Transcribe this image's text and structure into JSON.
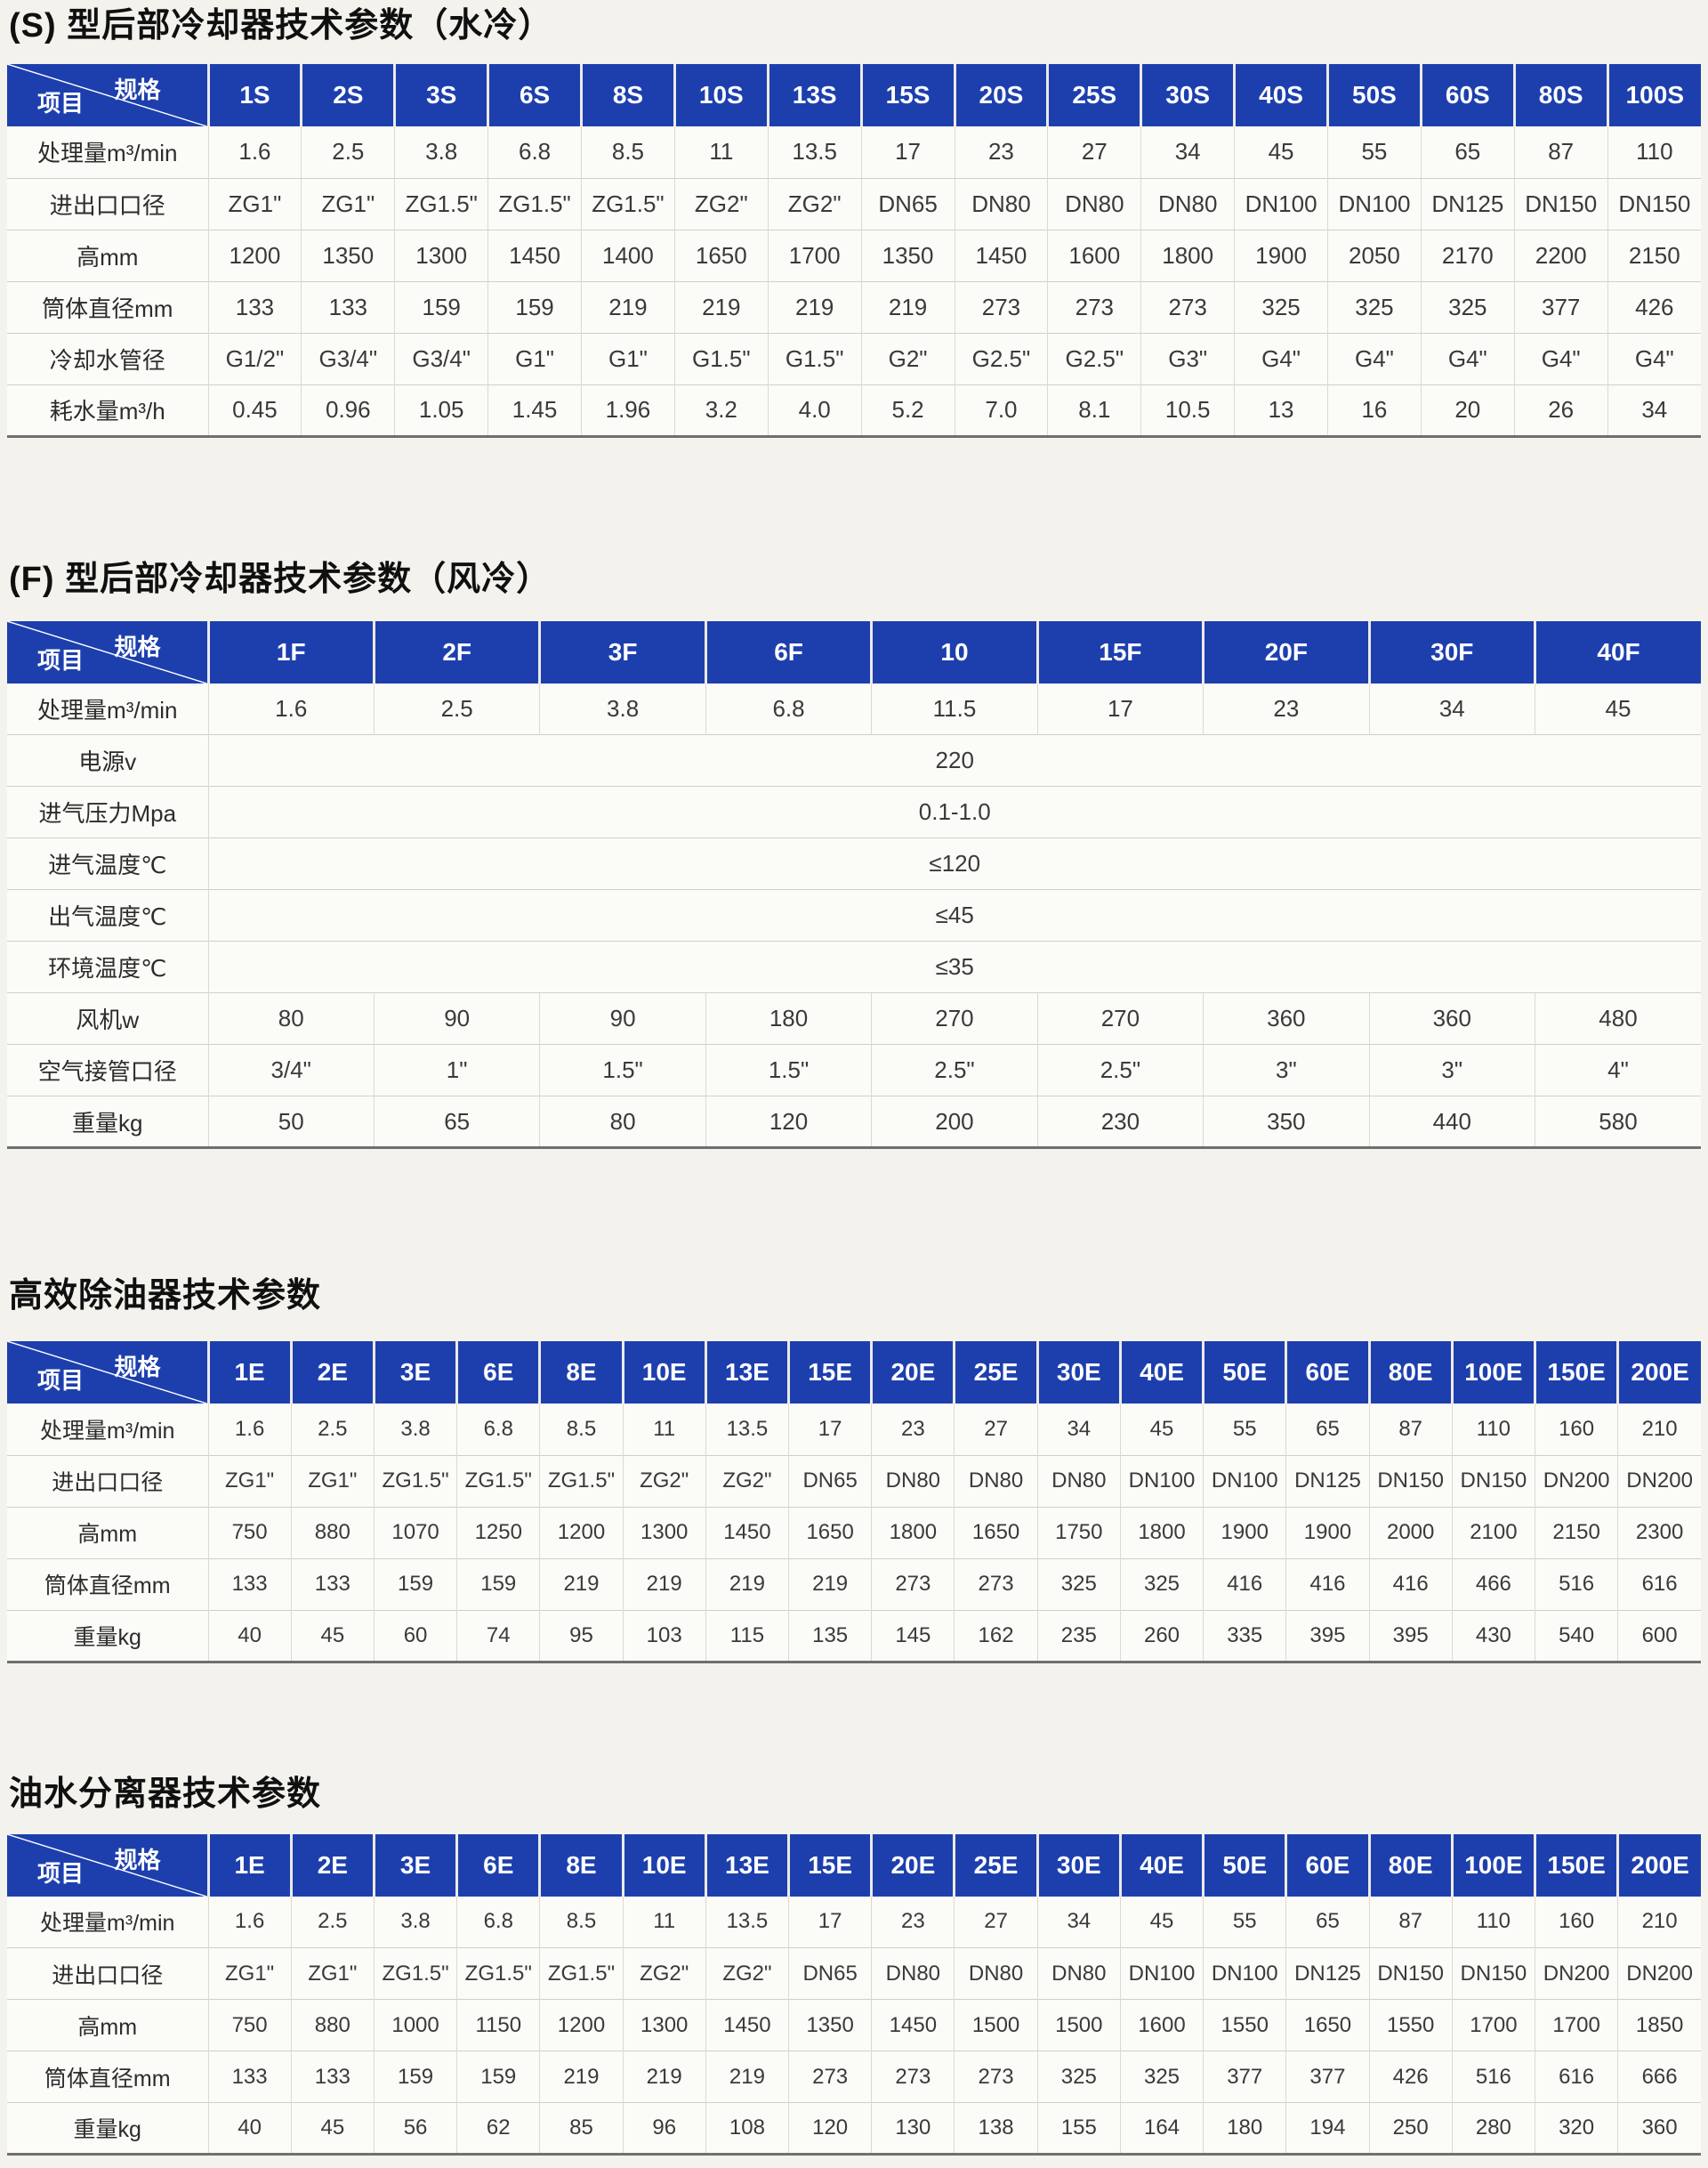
{
  "colors": {
    "header_blue": "#1d3fae",
    "page_bg": "#f3f2ed",
    "table_bg": "#fbfbf8"
  },
  "tables": [
    {
      "title": "(S) 型后部冷却器技术参数（水冷）",
      "corner": {
        "spec_label": "规格",
        "item_label": "项目"
      },
      "columns": [
        "1S",
        "2S",
        "3S",
        "6S",
        "8S",
        "10S",
        "13S",
        "15S",
        "20S",
        "25S",
        "30S",
        "40S",
        "50S",
        "60S",
        "80S",
        "100S"
      ],
      "rows": [
        {
          "label": "处理量m³/min",
          "values": [
            "1.6",
            "2.5",
            "3.8",
            "6.8",
            "8.5",
            "11",
            "13.5",
            "17",
            "23",
            "27",
            "34",
            "45",
            "55",
            "65",
            "87",
            "110"
          ]
        },
        {
          "label": "进出口口径",
          "values": [
            "ZG1\"",
            "ZG1\"",
            "ZG1.5\"",
            "ZG1.5\"",
            "ZG1.5\"",
            "ZG2\"",
            "ZG2\"",
            "DN65",
            "DN80",
            "DN80",
            "DN80",
            "DN100",
            "DN100",
            "DN125",
            "DN150",
            "DN150"
          ]
        },
        {
          "label": "高mm",
          "values": [
            "1200",
            "1350",
            "1300",
            "1450",
            "1400",
            "1650",
            "1700",
            "1350",
            "1450",
            "1600",
            "1800",
            "1900",
            "2050",
            "2170",
            "2200",
            "2150"
          ]
        },
        {
          "label": "筒体直径mm",
          "values": [
            "133",
            "133",
            "159",
            "159",
            "219",
            "219",
            "219",
            "219",
            "273",
            "273",
            "273",
            "325",
            "325",
            "325",
            "377",
            "426"
          ]
        },
        {
          "label": "冷却水管径",
          "values": [
            "G1/2\"",
            "G3/4\"",
            "G3/4\"",
            "G1\"",
            "G1\"",
            "G1.5\"",
            "G1.5\"",
            "G2\"",
            "G2.5\"",
            "G2.5\"",
            "G3\"",
            "G4\"",
            "G4\"",
            "G4\"",
            "G4\"",
            "G4\""
          ]
        },
        {
          "label": "耗水量m³/h",
          "values": [
            "0.45",
            "0.96",
            "1.05",
            "1.45",
            "1.96",
            "3.2",
            "4.0",
            "5.2",
            "7.0",
            "8.1",
            "10.5",
            "13",
            "16",
            "20",
            "26",
            "34"
          ]
        }
      ]
    },
    {
      "title": "(F) 型后部冷却器技术参数（风冷）",
      "corner": {
        "spec_label": "规格",
        "item_label": "项目"
      },
      "columns": [
        "1F",
        "2F",
        "3F",
        "6F",
        "10",
        "15F",
        "20F",
        "30F",
        "40F"
      ],
      "rows": [
        {
          "label": "处理量m³/min",
          "values": [
            "1.6",
            "2.5",
            "3.8",
            "6.8",
            "11.5",
            "17",
            "23",
            "34",
            "45"
          ]
        },
        {
          "label": "电源v",
          "span_value": "220"
        },
        {
          "label": "进气压力Mpa",
          "span_value": "0.1-1.0"
        },
        {
          "label": "进气温度℃",
          "span_value": "≤120"
        },
        {
          "label": "出气温度℃",
          "span_value": "≤45"
        },
        {
          "label": "环境温度℃",
          "span_value": "≤35"
        },
        {
          "label": "风机w",
          "values": [
            "80",
            "90",
            "90",
            "180",
            "270",
            "270",
            "360",
            "360",
            "480"
          ]
        },
        {
          "label": "空气接管口径",
          "values": [
            "3/4\"",
            "1\"",
            "1.5\"",
            "1.5\"",
            "2.5\"",
            "2.5\"",
            "3\"",
            "3\"",
            "4\""
          ]
        },
        {
          "label": "重量kg",
          "values": [
            "50",
            "65",
            "80",
            "120",
            "200",
            "230",
            "350",
            "440",
            "580"
          ]
        }
      ]
    },
    {
      "title": "高效除油器技术参数",
      "corner": {
        "spec_label": "规格",
        "item_label": "项目"
      },
      "columns": [
        "1E",
        "2E",
        "3E",
        "6E",
        "8E",
        "10E",
        "13E",
        "15E",
        "20E",
        "25E",
        "30E",
        "40E",
        "50E",
        "60E",
        "80E",
        "100E",
        "150E",
        "200E"
      ],
      "rows": [
        {
          "label": "处理量m³/min",
          "values": [
            "1.6",
            "2.5",
            "3.8",
            "6.8",
            "8.5",
            "11",
            "13.5",
            "17",
            "23",
            "27",
            "34",
            "45",
            "55",
            "65",
            "87",
            "110",
            "160",
            "210"
          ]
        },
        {
          "label": "进出口口径",
          "values": [
            "ZG1\"",
            "ZG1\"",
            "ZG1.5\"",
            "ZG1.5\"",
            "ZG1.5\"",
            "ZG2\"",
            "ZG2\"",
            "DN65",
            "DN80",
            "DN80",
            "DN80",
            "DN100",
            "DN100",
            "DN125",
            "DN150",
            "DN150",
            "DN200",
            "DN200"
          ]
        },
        {
          "label": "高mm",
          "values": [
            "750",
            "880",
            "1070",
            "1250",
            "1200",
            "1300",
            "1450",
            "1650",
            "1800",
            "1650",
            "1750",
            "1800",
            "1900",
            "1900",
            "2000",
            "2100",
            "2150",
            "2300"
          ]
        },
        {
          "label": "筒体直径mm",
          "values": [
            "133",
            "133",
            "159",
            "159",
            "219",
            "219",
            "219",
            "219",
            "273",
            "273",
            "325",
            "325",
            "416",
            "416",
            "416",
            "466",
            "516",
            "616"
          ]
        },
        {
          "label": "重量kg",
          "values": [
            "40",
            "45",
            "60",
            "74",
            "95",
            "103",
            "115",
            "135",
            "145",
            "162",
            "235",
            "260",
            "335",
            "395",
            "395",
            "430",
            "540",
            "600"
          ]
        }
      ]
    },
    {
      "title": "油水分离器技术参数",
      "corner": {
        "spec_label": "规格",
        "item_label": "项目"
      },
      "columns": [
        "1E",
        "2E",
        "3E",
        "6E",
        "8E",
        "10E",
        "13E",
        "15E",
        "20E",
        "25E",
        "30E",
        "40E",
        "50E",
        "60E",
        "80E",
        "100E",
        "150E",
        "200E"
      ],
      "rows": [
        {
          "label": "处理量m³/min",
          "values": [
            "1.6",
            "2.5",
            "3.8",
            "6.8",
            "8.5",
            "11",
            "13.5",
            "17",
            "23",
            "27",
            "34",
            "45",
            "55",
            "65",
            "87",
            "110",
            "160",
            "210"
          ]
        },
        {
          "label": "进出口口径",
          "values": [
            "ZG1\"",
            "ZG1\"",
            "ZG1.5\"",
            "ZG1.5\"",
            "ZG1.5\"",
            "ZG2\"",
            "ZG2\"",
            "DN65",
            "DN80",
            "DN80",
            "DN80",
            "DN100",
            "DN100",
            "DN125",
            "DN150",
            "DN150",
            "DN200",
            "DN200"
          ]
        },
        {
          "label": "高mm",
          "values": [
            "750",
            "880",
            "1000",
            "1150",
            "1200",
            "1300",
            "1450",
            "1350",
            "1450",
            "1500",
            "1500",
            "1600",
            "1550",
            "1650",
            "1550",
            "1700",
            "1700",
            "1850"
          ]
        },
        {
          "label": "筒体直径mm",
          "values": [
            "133",
            "133",
            "159",
            "159",
            "219",
            "219",
            "219",
            "273",
            "273",
            "273",
            "325",
            "325",
            "377",
            "377",
            "426",
            "516",
            "616",
            "666"
          ]
        },
        {
          "label": "重量kg",
          "values": [
            "40",
            "45",
            "56",
            "62",
            "85",
            "96",
            "108",
            "120",
            "130",
            "138",
            "155",
            "164",
            "180",
            "194",
            "250",
            "280",
            "320",
            "360"
          ]
        }
      ]
    }
  ]
}
